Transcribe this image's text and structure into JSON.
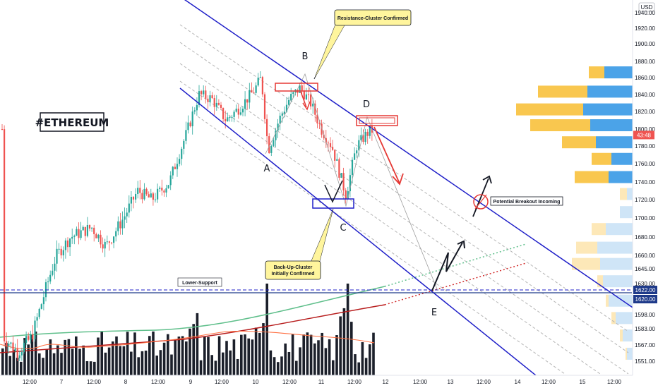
{
  "chart_data": {
    "type": "candlestick",
    "symbol_title": "#ETHEREUM",
    "currency": "USD",
    "price_axis": {
      "ticks": [
        1940,
        1920,
        1900,
        1880,
        1860,
        1840,
        1820,
        1800,
        1780,
        1760,
        1740,
        1720,
        1700,
        1680,
        1660,
        1645,
        1630,
        1598,
        1583,
        1567,
        1551
      ],
      "top_tick_label": "1940.00",
      "labels": [
        "1920.00",
        "1900.00",
        "1880.00",
        "1860.00",
        "1840.00",
        "1820.00",
        "1800.00",
        "1780.00",
        "1760.00",
        "1740.00",
        "1720.00",
        "1700.00",
        "1680.00",
        "1660.00",
        "1645.00",
        "1630.00",
        "1598.00",
        "1583.00",
        "1567.00",
        "1551.00"
      ],
      "current_price_label": "43:48",
      "current_price": 1793,
      "marker_labels": [
        {
          "text": "1622.00",
          "price": 1622
        },
        {
          "text": "1620.00",
          "price": 1618
        }
      ]
    },
    "time_axis": {
      "labels": [
        "12:00",
        "7",
        "12:00",
        "8",
        "12:00",
        "9",
        "12:00",
        "10",
        "12:00",
        "11",
        "12:00",
        "12",
        "12:00",
        "13",
        "12:00",
        "14",
        "12:00",
        "15",
        "12:00"
      ]
    },
    "points": [
      {
        "label": "A",
        "price": 1762
      },
      {
        "label": "B",
        "price": 1868
      },
      {
        "label": "C",
        "price": 1705
      },
      {
        "label": "D",
        "price": 1815
      },
      {
        "label": "E",
        "price": 1600
      }
    ],
    "annotations": [
      {
        "text": "Resistance-Cluster Confirmed"
      },
      {
        "text": "Back-Up-Cluster Initially Confirmed"
      },
      {
        "text": "Potential Breakout Incoming"
      },
      {
        "text": "Lower-Support"
      }
    ],
    "levels": [
      {
        "name": "Lower-Support",
        "value": 1620
      }
    ],
    "colors": {
      "up": "#26a69a",
      "down": "#ef5350",
      "channel": "#1e1ec8",
      "annotation": "#fff59d",
      "volume": "#1b1f2a",
      "profile_yellow": "#f9c74f",
      "profile_blue": "#4ba3e8"
    }
  }
}
